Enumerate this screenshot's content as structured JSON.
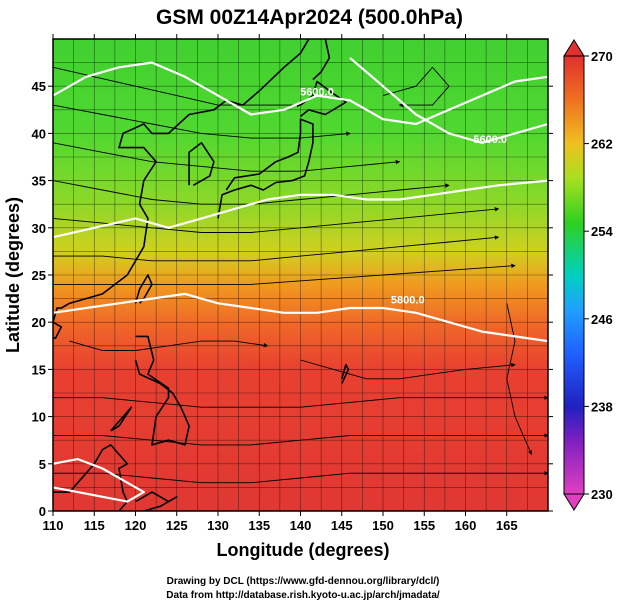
{
  "chart_data": {
    "type": "heatmap",
    "title": "GSM 00Z14Apr2024 (500.0hPa)",
    "xlabel": "Longitude (degrees)",
    "ylabel": "Latitude  (degrees)",
    "xlim": [
      110,
      170
    ],
    "ylim": [
      0,
      50
    ],
    "x_ticks": [
      110,
      115,
      120,
      125,
      130,
      135,
      140,
      145,
      150,
      155,
      160,
      165
    ],
    "y_ticks": [
      0,
      5,
      10,
      15,
      20,
      25,
      30,
      35,
      40,
      45
    ],
    "grid": true,
    "colorbar": {
      "min": 230,
      "max": 270,
      "tick_values": [
        230,
        238,
        246,
        254,
        262,
        270
      ],
      "tick_labels": [
        "230",
        "238",
        "246",
        "254",
        "262",
        "270"
      ],
      "colors": [
        "#e040c0",
        "#2020c0",
        "#2080ff",
        "#00d0d0",
        "#30d020",
        "#a8e020",
        "#f0c020",
        "#f08020",
        "#e83030",
        "#e03030"
      ]
    },
    "field_description": "500 hPa temperature shading with wind streamlines",
    "temperature_bands": [
      {
        "lat": 48,
        "value": 254
      },
      {
        "lat": 42,
        "value": 255
      },
      {
        "lat": 36,
        "value": 256
      },
      {
        "lat": 30,
        "value": 258
      },
      {
        "lat": 25,
        "value": 262
      },
      {
        "lat": 20,
        "value": 266
      },
      {
        "lat": 14,
        "value": 267
      },
      {
        "lat": 8,
        "value": 268
      },
      {
        "lat": 2,
        "value": 268
      }
    ],
    "height_contours": [
      {
        "label": "5600.0",
        "label_at": [
          142,
          44
        ],
        "points": [
          [
            110,
            44
          ],
          [
            114,
            46
          ],
          [
            118,
            47
          ],
          [
            122,
            47.5
          ],
          [
            126,
            46
          ],
          [
            130,
            44
          ],
          [
            134,
            42
          ],
          [
            138,
            42.5
          ],
          [
            142,
            44
          ],
          [
            146,
            43.5
          ],
          [
            150,
            41.5
          ],
          [
            154,
            41
          ],
          [
            158,
            42.5
          ],
          [
            162,
            44
          ],
          [
            166,
            45.5
          ],
          [
            170,
            46
          ]
        ]
      },
      {
        "label": "5600.0",
        "label_at": [
          163,
          39
        ],
        "points": [
          [
            146,
            48
          ],
          [
            150,
            45
          ],
          [
            154,
            42
          ],
          [
            158,
            40
          ],
          [
            162,
            39
          ],
          [
            166,
            40
          ],
          [
            170,
            41
          ]
        ]
      },
      {
        "label": "",
        "label_at": null,
        "points": [
          [
            110,
            29
          ],
          [
            115,
            30
          ],
          [
            120,
            31
          ],
          [
            124,
            30
          ],
          [
            128,
            31
          ],
          [
            132,
            32
          ],
          [
            136,
            33
          ],
          [
            140,
            33.5
          ],
          [
            144,
            33.5
          ],
          [
            148,
            33
          ],
          [
            152,
            33
          ],
          [
            156,
            33.5
          ],
          [
            160,
            34
          ],
          [
            164,
            34.5
          ],
          [
            170,
            35
          ]
        ]
      },
      {
        "label": "5800.0",
        "label_at": [
          153,
          22
        ],
        "points": [
          [
            110,
            21
          ],
          [
            114,
            21.5
          ],
          [
            118,
            22
          ],
          [
            122,
            22.5
          ],
          [
            126,
            23
          ],
          [
            130,
            22
          ],
          [
            134,
            21.5
          ],
          [
            138,
            21
          ],
          [
            142,
            21
          ],
          [
            146,
            21.5
          ],
          [
            150,
            21.5
          ],
          [
            154,
            21
          ],
          [
            158,
            20
          ],
          [
            162,
            19
          ],
          [
            166,
            18.5
          ],
          [
            170,
            18
          ]
        ]
      },
      {
        "label": "",
        "label_at": null,
        "points": [
          [
            110,
            5
          ],
          [
            113,
            5.5
          ],
          [
            116,
            4.5
          ],
          [
            119,
            3
          ],
          [
            121,
            2
          ],
          [
            119,
            1
          ],
          [
            116,
            1.5
          ],
          [
            113,
            2
          ],
          [
            110,
            2.5
          ]
        ]
      }
    ],
    "streamlines": [
      [
        [
          110,
          47
        ],
        [
          115,
          46
        ],
        [
          120,
          45
        ],
        [
          125,
          44
        ],
        [
          130,
          43
        ],
        [
          135,
          43
        ],
        [
          140,
          43
        ]
      ],
      [
        [
          110,
          43
        ],
        [
          116,
          42
        ],
        [
          122,
          41
        ],
        [
          128,
          40
        ],
        [
          134,
          39.5
        ],
        [
          140,
          39.5
        ],
        [
          146,
          40
        ]
      ],
      [
        [
          110,
          39
        ],
        [
          116,
          38
        ],
        [
          122,
          37
        ],
        [
          128,
          36.5
        ],
        [
          134,
          36
        ],
        [
          140,
          36
        ],
        [
          146,
          36.5
        ],
        [
          152,
          37
        ]
      ],
      [
        [
          110,
          35
        ],
        [
          116,
          34
        ],
        [
          122,
          33
        ],
        [
          128,
          32.5
        ],
        [
          134,
          32.5
        ],
        [
          140,
          33
        ],
        [
          146,
          33.5
        ],
        [
          152,
          34
        ],
        [
          158,
          34.5
        ]
      ],
      [
        [
          110,
          31
        ],
        [
          116,
          30.5
        ],
        [
          122,
          30
        ],
        [
          128,
          29.5
        ],
        [
          134,
          29.5
        ],
        [
          140,
          30
        ],
        [
          146,
          30.5
        ],
        [
          152,
          31
        ],
        [
          158,
          31.5
        ],
        [
          164,
          32
        ]
      ],
      [
        [
          110,
          27
        ],
        [
          116,
          27
        ],
        [
          122,
          26.5
        ],
        [
          128,
          26.5
        ],
        [
          134,
          26.5
        ],
        [
          140,
          27
        ],
        [
          146,
          27.5
        ],
        [
          152,
          28
        ],
        [
          158,
          28.5
        ],
        [
          164,
          29
        ]
      ],
      [
        [
          110,
          24
        ],
        [
          118,
          24
        ],
        [
          126,
          24
        ],
        [
          134,
          24
        ],
        [
          142,
          24.5
        ],
        [
          150,
          25
        ],
        [
          158,
          25.5
        ],
        [
          166,
          26
        ]
      ],
      [
        [
          112,
          18
        ],
        [
          116,
          17
        ],
        [
          120,
          17
        ],
        [
          124,
          17.5
        ],
        [
          128,
          18
        ],
        [
          132,
          18
        ],
        [
          136,
          17.5
        ]
      ],
      [
        [
          140,
          16
        ],
        [
          144,
          15
        ],
        [
          148,
          14
        ],
        [
          152,
          14
        ],
        [
          156,
          14.5
        ],
        [
          160,
          15
        ],
        [
          166,
          15.5
        ]
      ],
      [
        [
          110,
          12
        ],
        [
          116,
          12
        ],
        [
          122,
          11.5
        ],
        [
          128,
          11
        ],
        [
          134,
          11
        ],
        [
          140,
          11
        ],
        [
          146,
          11.5
        ],
        [
          152,
          12
        ],
        [
          158,
          12
        ],
        [
          164,
          12
        ],
        [
          170,
          12
        ]
      ],
      [
        [
          110,
          8
        ],
        [
          116,
          8
        ],
        [
          122,
          7.5
        ],
        [
          128,
          7
        ],
        [
          134,
          7
        ],
        [
          140,
          7.5
        ],
        [
          146,
          8
        ],
        [
          152,
          8
        ],
        [
          158,
          8
        ],
        [
          164,
          8
        ],
        [
          170,
          8
        ]
      ],
      [
        [
          110,
          4
        ],
        [
          116,
          4
        ],
        [
          122,
          3.5
        ],
        [
          128,
          3
        ],
        [
          134,
          3
        ],
        [
          140,
          3.5
        ],
        [
          146,
          4
        ],
        [
          152,
          4
        ],
        [
          158,
          4
        ],
        [
          164,
          4
        ],
        [
          170,
          4
        ]
      ],
      [
        [
          150,
          44
        ],
        [
          154,
          45
        ],
        [
          156,
          47
        ],
        [
          158,
          45
        ],
        [
          156,
          43
        ],
        [
          152,
          43
        ]
      ],
      [
        [
          165,
          22
        ],
        [
          166,
          18
        ],
        [
          165,
          14
        ],
        [
          166,
          10
        ],
        [
          168,
          6
        ]
      ]
    ],
    "coastlines": [
      [
        [
          119,
          25
        ],
        [
          121,
          28
        ],
        [
          121.5,
          31
        ],
        [
          120.5,
          32.5
        ],
        [
          121,
          35
        ],
        [
          122.5,
          37
        ],
        [
          121,
          38.5
        ],
        [
          118,
          38.5
        ],
        [
          118.5,
          40
        ],
        [
          121,
          41
        ],
        [
          122,
          40
        ],
        [
          124,
          40
        ],
        [
          126.5,
          42
        ],
        [
          129.5,
          42.5
        ],
        [
          131,
          43.5
        ],
        [
          133,
          43
        ],
        [
          135,
          44.5
        ],
        [
          138,
          47
        ],
        [
          140,
          48.5
        ],
        [
          141,
          50
        ]
      ],
      [
        [
          126.5,
          34.5
        ],
        [
          126.5,
          37
        ],
        [
          126.5,
          38
        ],
        [
          128,
          39
        ],
        [
          129.5,
          37
        ],
        [
          129,
          35.5
        ],
        [
          127,
          34.5
        ]
      ],
      [
        [
          130,
          31
        ],
        [
          130.5,
          33.5
        ],
        [
          132,
          34
        ],
        [
          134,
          34.5
        ],
        [
          135.5,
          34
        ],
        [
          137,
          34.8
        ],
        [
          139,
          35
        ],
        [
          140.5,
          35.5
        ],
        [
          141,
          37
        ],
        [
          141.5,
          39
        ],
        [
          141.5,
          41
        ],
        [
          140,
          41.5
        ],
        [
          140,
          40
        ],
        [
          139.7,
          38
        ],
        [
          138.5,
          37.5
        ],
        [
          137,
          37
        ],
        [
          135,
          35.7
        ],
        [
          132,
          35.3
        ],
        [
          131,
          34
        ]
      ],
      [
        [
          140,
          41.8
        ],
        [
          141,
          42.5
        ],
        [
          143,
          42
        ],
        [
          145.5,
          43.3
        ],
        [
          144,
          44.2
        ],
        [
          142,
          45.5
        ],
        [
          141.5,
          44
        ],
        [
          140,
          43
        ]
      ],
      [
        [
          120,
          22
        ],
        [
          120.5,
          23.5
        ],
        [
          121.5,
          25
        ],
        [
          122,
          24
        ],
        [
          121,
          22.5
        ],
        [
          120.5,
          22
        ]
      ],
      [
        [
          110,
          20
        ],
        [
          110.5,
          21.5
        ],
        [
          111,
          21.5
        ],
        [
          112,
          22
        ],
        [
          114,
          22.5
        ],
        [
          116,
          23
        ],
        [
          117.5,
          24
        ],
        [
          119,
          25
        ]
      ],
      [
        [
          108.5,
          19.5
        ],
        [
          110,
          20
        ],
        [
          111,
          19.5
        ],
        [
          110.3,
          18.3
        ],
        [
          109,
          18.5
        ]
      ],
      [
        [
          120,
          18.5
        ],
        [
          121.5,
          18.5
        ],
        [
          122.2,
          16
        ],
        [
          121.5,
          14.5
        ],
        [
          124,
          13
        ],
        [
          124,
          12
        ],
        [
          122.5,
          10
        ],
        [
          122,
          7
        ],
        [
          124,
          7.5
        ],
        [
          126,
          7
        ],
        [
          126.5,
          9
        ],
        [
          125.5,
          11
        ],
        [
          124.5,
          12.5
        ],
        [
          123,
          13.5
        ],
        [
          120.5,
          14.5
        ],
        [
          120,
          16
        ]
      ],
      [
        [
          117,
          8.5
        ],
        [
          118.5,
          10
        ],
        [
          119.5,
          11
        ],
        [
          118,
          9
        ],
        [
          117,
          8.5
        ]
      ],
      [
        [
          110,
          2
        ],
        [
          112,
          2
        ],
        [
          113,
          3
        ],
        [
          115,
          5
        ],
        [
          116,
          6.5
        ],
        [
          117,
          7
        ],
        [
          118,
          6
        ],
        [
          119,
          5
        ],
        [
          118,
          4.5
        ],
        [
          118.5,
          2
        ],
        [
          119,
          1
        ],
        [
          118,
          0
        ]
      ],
      [
        [
          120,
          1
        ],
        [
          121,
          1.5
        ],
        [
          122,
          2
        ],
        [
          124,
          1
        ],
        [
          125,
          1.5
        ],
        [
          123,
          0.5
        ],
        [
          121,
          0
        ]
      ],
      [
        [
          145,
          14
        ],
        [
          145.5,
          15.5
        ],
        [
          145.8,
          15
        ],
        [
          145,
          13.5
        ]
      ],
      [
        [
          141.5,
          45.7
        ],
        [
          142.5,
          46.5
        ],
        [
          143.5,
          48
        ],
        [
          143,
          50
        ]
      ]
    ]
  },
  "credits": {
    "line1": "Drawing by DCL (https://www.gfd-dennou.org/library/dcl/)",
    "line2": "Data from http://database.rish.kyoto-u.ac.jp/arch/jmadata/"
  }
}
